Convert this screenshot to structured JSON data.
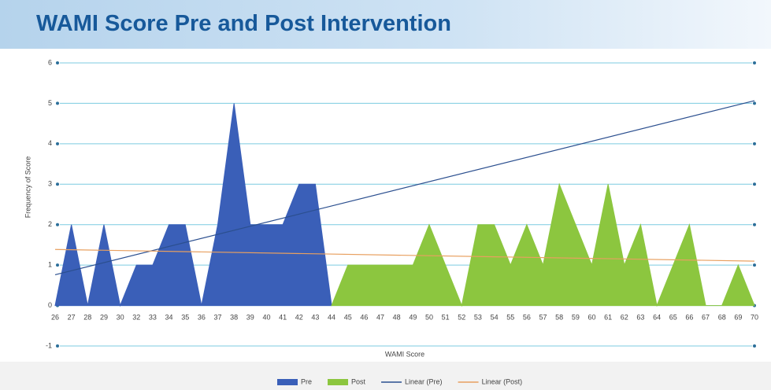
{
  "chart_data": {
    "type": "area",
    "title": "WAMI Score Pre and Post Intervention",
    "xlabel": "WAMI Score",
    "ylabel": "Frequency of Score",
    "categories": [
      "26",
      "27",
      "28",
      "29",
      "30",
      "32",
      "33",
      "34",
      "35",
      "36",
      "37",
      "38",
      "39",
      "40",
      "41",
      "42",
      "43",
      "44",
      "45",
      "46",
      "47",
      "48",
      "49",
      "50",
      "51",
      "52",
      "53",
      "54",
      "55",
      "56",
      "57",
      "58",
      "59",
      "60",
      "61",
      "62",
      "63",
      "64",
      "65",
      "66",
      "67",
      "68",
      "69",
      "70"
    ],
    "series": [
      {
        "name": "Pre",
        "color": "#3a5fb8",
        "values": [
          0,
          2,
          0,
          2,
          0,
          1,
          1,
          2,
          2,
          0,
          2,
          5,
          2,
          2,
          2,
          3,
          3,
          0,
          null,
          null,
          null,
          null,
          null,
          null,
          null,
          null,
          null,
          null,
          null,
          null,
          null,
          null,
          null,
          null,
          null,
          null,
          null,
          null,
          null,
          null,
          null,
          null,
          null,
          null
        ]
      },
      {
        "name": "Post",
        "color": "#8cc63f",
        "values": [
          null,
          null,
          null,
          null,
          null,
          null,
          null,
          null,
          null,
          null,
          null,
          null,
          null,
          null,
          null,
          null,
          null,
          0,
          1,
          1,
          1,
          1,
          1,
          2,
          1,
          0,
          2,
          2,
          1,
          2,
          1,
          3,
          2,
          1,
          3,
          1,
          2,
          0,
          1,
          2,
          0,
          0,
          1,
          0
        ]
      }
    ],
    "trendlines": [
      {
        "name": "Linear (Pre)",
        "series": 0,
        "color": "#2b4f8f"
      },
      {
        "name": "Linear (Post)",
        "series": 1,
        "color": "#e8a060"
      }
    ],
    "ylim": [
      -1,
      6
    ],
    "yticks": [
      -1,
      0,
      1,
      2,
      3,
      4,
      5,
      6
    ],
    "grid": true
  }
}
